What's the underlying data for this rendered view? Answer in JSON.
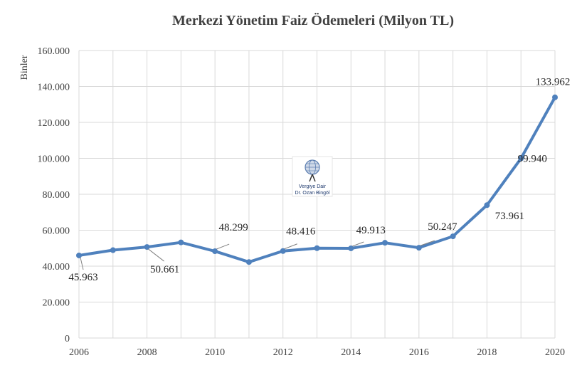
{
  "chart_data": {
    "type": "line",
    "title": "Merkezi Yönetim Faiz Ödemeleri (Milyon TL)",
    "y_unit_label": "Binler",
    "xlabel": "",
    "ylabel": "",
    "xlim": [
      2006,
      2020
    ],
    "ylim": [
      0,
      160000
    ],
    "x_ticks": [
      "2006",
      "2008",
      "2010",
      "2012",
      "2014",
      "2016",
      "2018",
      "2020"
    ],
    "y_ticks": [
      "0",
      "20.000",
      "40.000",
      "60.000",
      "80.000",
      "100.000",
      "120.000",
      "140.000",
      "160.000"
    ],
    "grid": true,
    "legend": "none",
    "series": [
      {
        "color": "#4f81bd",
        "x": [
          2006,
          2007,
          2008,
          2009,
          2010,
          2011,
          2012,
          2013,
          2014,
          2015,
          2016,
          2017,
          2018,
          2019,
          2020
        ],
        "values": [
          45963,
          48900,
          50661,
          53200,
          48299,
          42300,
          48416,
          50000,
          49913,
          53000,
          50247,
          56600,
          73961,
          99940,
          133962
        ]
      }
    ],
    "data_labels": [
      {
        "x": 2006,
        "text": "45.963"
      },
      {
        "x": 2008,
        "text": "50.661"
      },
      {
        "x": 2010,
        "text": "48.299"
      },
      {
        "x": 2012,
        "text": "48.416"
      },
      {
        "x": 2014,
        "text": "49.913"
      },
      {
        "x": 2016,
        "text": "50.247"
      },
      {
        "x": 2018,
        "text": "73.961"
      },
      {
        "x": 2019,
        "text": "99.940"
      },
      {
        "x": 2020,
        "text": "133.962"
      }
    ]
  },
  "watermark": {
    "icon": "globe-icon",
    "line1": "Vergiye Dair",
    "line2": "Dr. Ozan Bingöl"
  }
}
